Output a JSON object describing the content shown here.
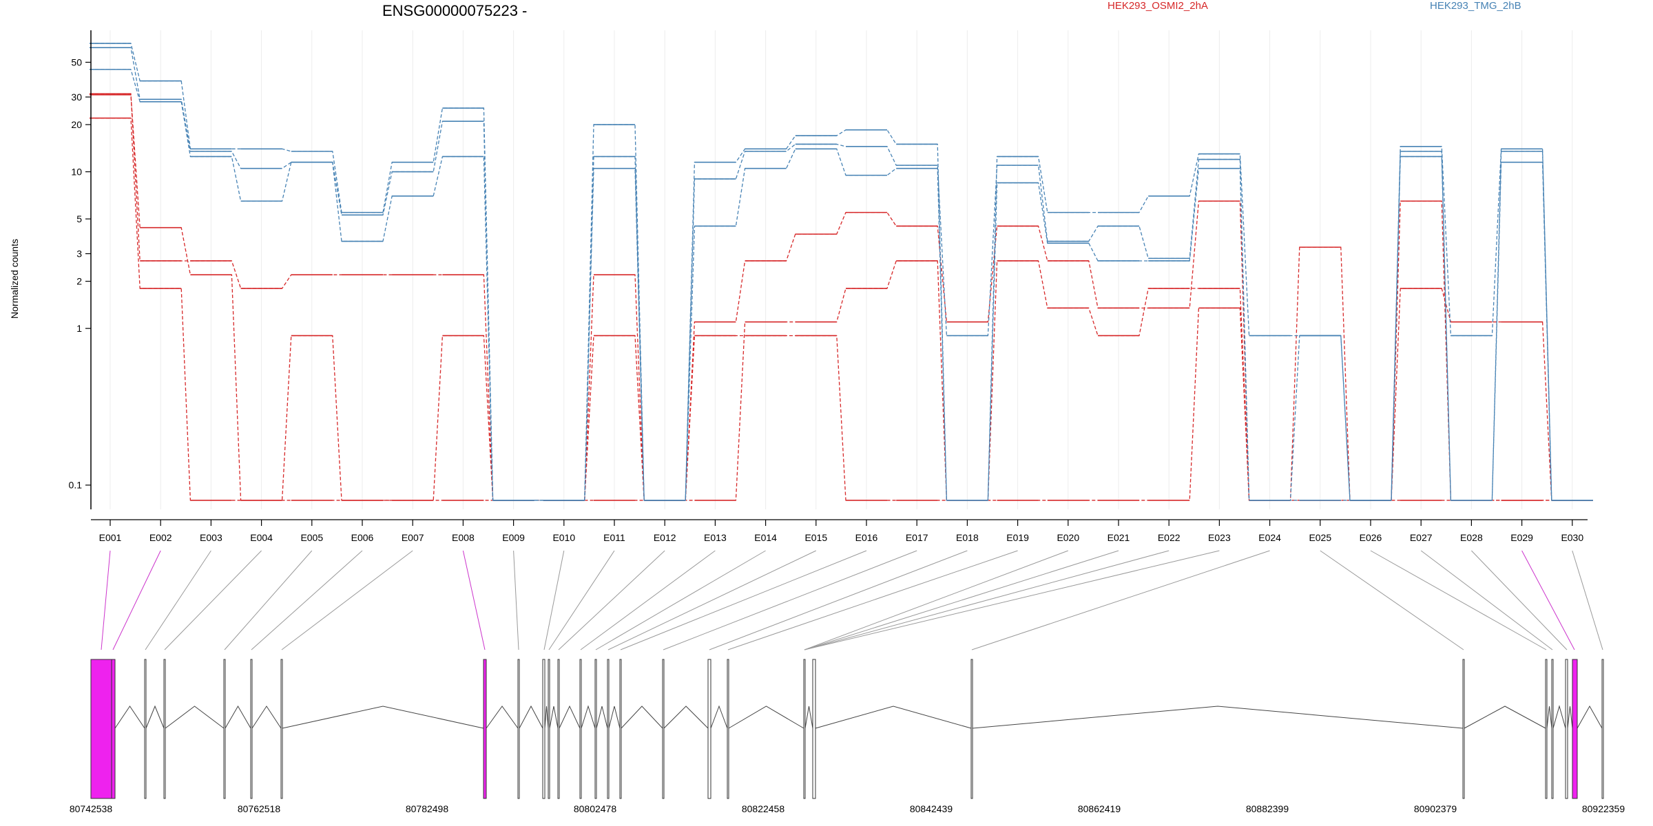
{
  "chart_data": {
    "type": "line",
    "title": "ENSG00000075223 -",
    "xlabel": "",
    "ylabel": "Normalized counts",
    "yscale": "log",
    "ylim": [
      0.07,
      80
    ],
    "yticks": [
      0.1,
      1,
      2,
      3,
      5,
      10,
      20,
      30,
      50
    ],
    "ytick_labels": [
      "0.1",
      "1",
      "2",
      "3",
      "5",
      "10",
      "20",
      "30",
      "50"
    ],
    "grid": true,
    "legend_position": "top",
    "categories": [
      "E001",
      "E002",
      "E003",
      "E004",
      "E005",
      "E006",
      "E007",
      "E008",
      "E009",
      "E010",
      "E011",
      "E012",
      "E013",
      "E014",
      "E015",
      "E016",
      "E017",
      "E018",
      "E019",
      "E020",
      "E021",
      "E022",
      "E023",
      "E024",
      "E025",
      "E026",
      "E027",
      "E028",
      "E029",
      "E030"
    ],
    "series": [
      {
        "name": "HEK293_OSMI2_2hA",
        "color": "#d62728",
        "values": [
          31.5,
          2.7,
          2.7,
          1.8,
          2.2,
          2.2,
          2.2,
          2.2,
          0.08,
          0.08,
          2.2,
          0.08,
          1.1,
          2.7,
          4.0,
          5.5,
          4.5,
          1.1,
          4.5,
          2.7,
          1.35,
          1.35,
          6.5,
          0.08,
          3.3,
          0.08,
          6.5,
          0.08,
          0.08,
          0.08
        ]
      },
      {
        "name": "HEK293_OSMI2_2hA",
        "color": "#d62728",
        "values": [
          31,
          4.4,
          2.2,
          0.08,
          0.9,
          0.08,
          0.08,
          0.9,
          0.08,
          0.08,
          0.9,
          0.08,
          0.9,
          0.9,
          0.9,
          0.08,
          0.08,
          0.08,
          2.7,
          1.35,
          0.9,
          1.8,
          1.8,
          0.08,
          0.08,
          0.08,
          1.8,
          1.1,
          1.1,
          0.08
        ]
      },
      {
        "name": "HEK293_OSMI2_2hA",
        "color": "#d62728",
        "values": [
          22,
          1.8,
          0.08,
          0.08,
          0.08,
          0.08,
          0.08,
          0.08,
          0.08,
          0.08,
          0.08,
          0.08,
          0.08,
          1.1,
          1.1,
          1.8,
          2.7,
          0.08,
          0.08,
          0.08,
          0.08,
          0.08,
          1.35,
          0.08,
          0.08,
          0.08,
          0.08,
          0.08,
          0.08,
          0.08
        ]
      },
      {
        "name": "HEK293_TMG_2hB",
        "color": "#4682b4",
        "values": [
          66,
          38,
          14,
          14,
          13.5,
          5.5,
          11.5,
          25.5,
          0.08,
          0.08,
          20,
          0.08,
          11.5,
          14,
          17,
          18.5,
          15,
          0.08,
          12.5,
          5.5,
          5.5,
          7,
          13,
          0.9,
          0.9,
          0.08,
          14.5,
          0.9,
          14,
          0.08
        ]
      },
      {
        "name": "HEK293_TMG_2hB",
        "color": "#4682b4",
        "values": [
          62,
          29,
          13.5,
          10.5,
          11.5,
          5.3,
          10,
          21,
          0.08,
          0.08,
          12.5,
          0.08,
          9,
          13.5,
          15,
          14.5,
          11,
          0.9,
          11,
          3.6,
          4.5,
          2.8,
          12,
          0.08,
          0.9,
          0.08,
          13.5,
          0.08,
          13.5,
          0.08
        ]
      },
      {
        "name": "HEK293_TMG_2hB",
        "color": "#4682b4",
        "values": [
          45,
          28,
          12.5,
          6.5,
          11.5,
          3.6,
          7,
          12.5,
          0.08,
          0.08,
          10.5,
          0.08,
          4.5,
          10.5,
          14,
          9.5,
          10.5,
          0.08,
          8.5,
          3.5,
          2.7,
          2.7,
          10.5,
          0.08,
          0.08,
          0.08,
          12.5,
          0.08,
          11.5,
          0.08
        ]
      }
    ]
  },
  "gene_model": {
    "coordinate_labels": [
      "80742538",
      "80762518",
      "80782498",
      "80802478",
      "80822458",
      "80842439",
      "80862419",
      "80882399",
      "80902379",
      "80922359"
    ],
    "highlight_color": "#ee22ee",
    "intron_color": "#444444"
  }
}
